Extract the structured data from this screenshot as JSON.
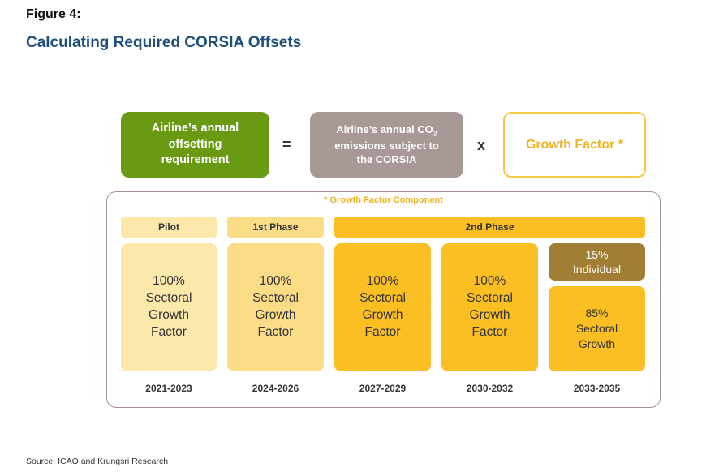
{
  "figure_label": "Figure 4:",
  "figure_title": "Calculating Required CORSIA Offsets",
  "equation": {
    "left": "Airline’s annual offsetting requirement",
    "equals": "=",
    "middle_line1_pre": "Airline’s annual CO",
    "middle_line1_sub": "2",
    "middle_line2": "emissions subject to",
    "middle_line3": "the CORSIA",
    "times": "x",
    "right": "Growth Factor *"
  },
  "component_title": "* Growth Factor Component",
  "phases": {
    "pilot": "Pilot",
    "first": "1st Phase",
    "second": "2nd Phase"
  },
  "columns": [
    {
      "l1": "100%",
      "l2": "Sectoral",
      "l3": "Growth",
      "l4": "Factor",
      "year": "2021-2023",
      "color": "#fde8ab"
    },
    {
      "l1": "100%",
      "l2": "Sectoral",
      "l3": "Growth",
      "l4": "Factor",
      "year": "2024-2026",
      "color": "#fddc88"
    },
    {
      "l1": "100%",
      "l2": "Sectoral",
      "l3": "Growth",
      "l4": "Factor",
      "year": "2027-2029",
      "color": "#fbbf24"
    },
    {
      "l1": "100%",
      "l2": "Sectoral",
      "l3": "Growth",
      "l4": "Factor",
      "year": "2030-2032",
      "color": "#fbbf24"
    }
  ],
  "last_column": {
    "top_l1": "15%",
    "top_l2": "Individual",
    "bottom_l1": "85%",
    "bottom_l2": "Sectoral",
    "bottom_l3": "Growth",
    "year": "2033-2035"
  },
  "source": "Source: ICAO and Krungsri Research",
  "colors": {
    "green": "#6a9a13",
    "taupe": "#a89896",
    "gold": "#f0b323",
    "brown": "#a17e33"
  }
}
